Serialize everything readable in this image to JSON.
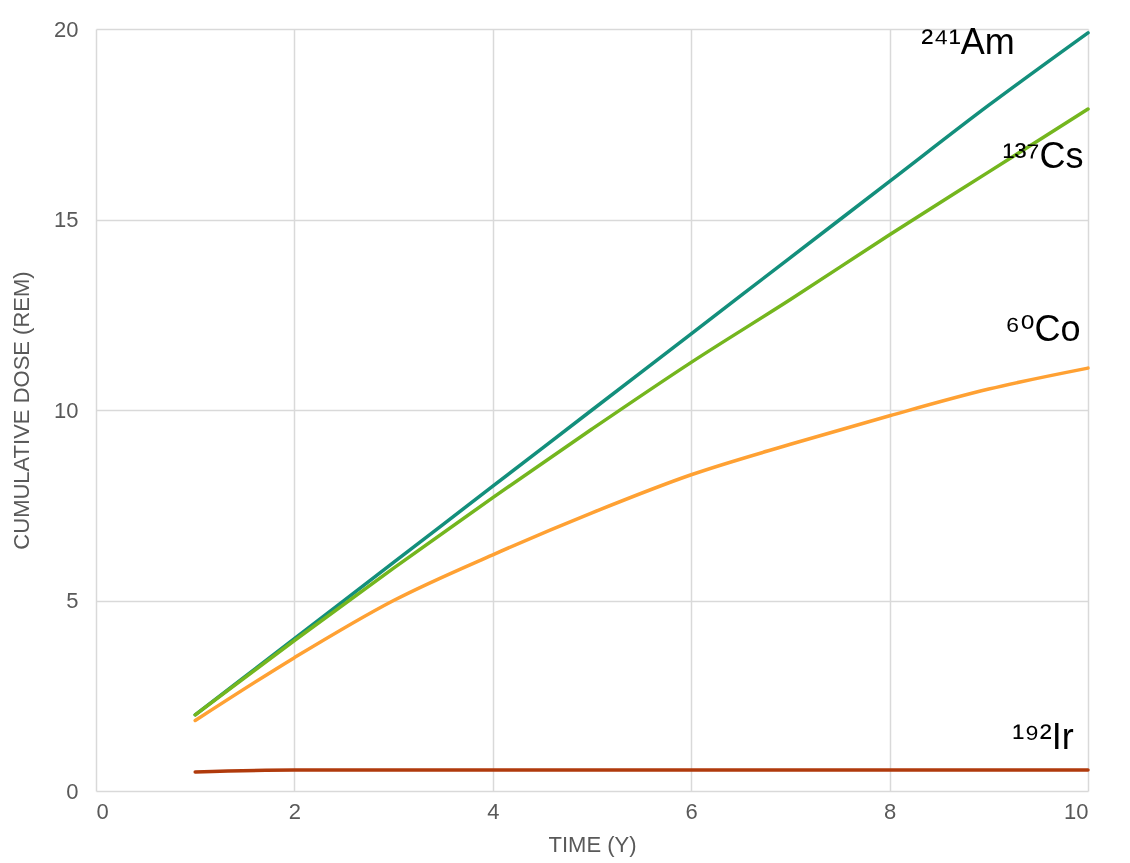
{
  "chart_data": {
    "type": "line",
    "xlabel": "TIME (Y)",
    "ylabel": "CUMULATIVE DOSE (REM)",
    "x": [
      1,
      2,
      3,
      4,
      5,
      6,
      7,
      8,
      9,
      10
    ],
    "series": [
      {
        "name": "²⁴¹Am",
        "color": "#138f7c",
        "values": [
          2,
          4,
          6,
          8,
          10,
          12,
          14,
          16,
          18,
          19.9
        ]
      },
      {
        "name": "¹³⁷Cs",
        "color": "#74b61e",
        "values": [
          2,
          3.95,
          5.85,
          7.7,
          9.5,
          11.25,
          12.9,
          14.6,
          16.25,
          17.9
        ]
      },
      {
        "name": "⁶⁰Co",
        "color": "#ffa133",
        "values": [
          1.85,
          3.5,
          5,
          6.2,
          7.3,
          8.3,
          9.1,
          9.85,
          10.55,
          11.1
        ]
      },
      {
        "name": "¹⁹²Ir",
        "color": "#b03a0c",
        "values": [
          0.5,
          0.55,
          0.55,
          0.55,
          0.55,
          0.55,
          0.55,
          0.55,
          0.55,
          0.55
        ]
      }
    ],
    "xlim": [
      0,
      10
    ],
    "xticks": [
      0,
      2,
      4,
      6,
      8,
      10
    ],
    "ylim": [
      0,
      20
    ],
    "yticks": [
      0,
      5,
      10,
      15,
      20
    ],
    "grid": true,
    "legend": false,
    "marker": "none",
    "line_style": "solid"
  }
}
